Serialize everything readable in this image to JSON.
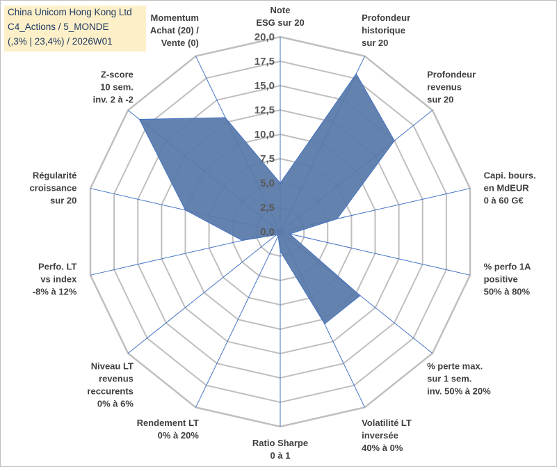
{
  "info_box": {
    "line1": "China Unicom Hong Kong Ltd",
    "line2": "C4_Actions / 5_MONDE",
    "line3": "(,3% | 23,4%) / 2026W01"
  },
  "colors": {
    "fill": "#5878a8",
    "stroke": "#4472c4",
    "grid": "#bfbfbf",
    "info_bg": "#fdf0c8",
    "info_text": "#1f3864"
  },
  "chart_data": {
    "type": "radar",
    "r_range": [
      0,
      20
    ],
    "tick_labels": [
      "0,0",
      "2,5",
      "5,0",
      "7,5",
      "10,0",
      "12,5",
      "15,0",
      "17,5",
      "20,0"
    ],
    "categories": [
      [
        "Note",
        "ESG sur 20"
      ],
      [
        "Profondeur",
        "historique",
        "sur 20"
      ],
      [
        "Profondeur",
        "revenus",
        "sur 20"
      ],
      [
        "Capi. bours.",
        "en MdEUR",
        "0 à 60 G€"
      ],
      [
        "% perfo 1A",
        "positive",
        "50% à 80%"
      ],
      [
        "% perte max.",
        "sur 1 sem.",
        "inv. 50% à 20%"
      ],
      [
        "Volatilité LT",
        "inversée",
        "40% à 0%"
      ],
      [
        "Ratio Sharpe",
        "0 à 1"
      ],
      [
        "Rendement LT",
        "0% à 20%"
      ],
      [
        "Niveau LT",
        "revenus",
        "reccurents",
        "0% à 6%"
      ],
      [
        "Perfo. LT",
        "vs index",
        "-8% à 12%"
      ],
      [
        "Régularité",
        "croissance",
        "sur 20"
      ],
      [
        "Z-score",
        "10 sem.",
        "inv. 2 à -2"
      ],
      [
        "Momentum",
        "Achat (20) /",
        "Vente (0)"
      ]
    ],
    "series": [
      {
        "name": "China Unicom Hong Kong Ltd",
        "values": [
          5.0,
          18.0,
          15.0,
          6.0,
          1.0,
          10.5,
          10.5,
          2.0,
          0.5,
          0.5,
          4.0,
          10.0,
          18.5,
          13.0
        ]
      }
    ]
  }
}
